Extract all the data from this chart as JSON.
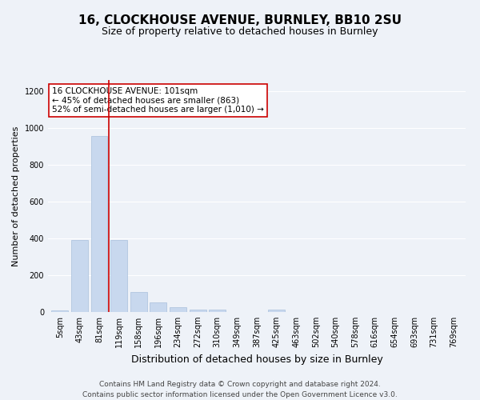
{
  "title1": "16, CLOCKHOUSE AVENUE, BURNLEY, BB10 2SU",
  "title2": "Size of property relative to detached houses in Burnley",
  "xlabel": "Distribution of detached houses by size in Burnley",
  "ylabel": "Number of detached properties",
  "categories": [
    "5sqm",
    "43sqm",
    "81sqm",
    "119sqm",
    "158sqm",
    "196sqm",
    "234sqm",
    "272sqm",
    "310sqm",
    "349sqm",
    "387sqm",
    "425sqm",
    "463sqm",
    "502sqm",
    "540sqm",
    "578sqm",
    "616sqm",
    "654sqm",
    "693sqm",
    "731sqm",
    "769sqm"
  ],
  "values": [
    10,
    393,
    954,
    392,
    107,
    52,
    25,
    13,
    13,
    0,
    0,
    14,
    0,
    0,
    0,
    0,
    0,
    0,
    0,
    0,
    0
  ],
  "bar_color": "#c8d8ee",
  "bar_edge_color": "#a8c0dc",
  "vline_x_index": 2.5,
  "annotation_text": "16 CLOCKHOUSE AVENUE: 101sqm\n← 45% of detached houses are smaller (863)\n52% of semi-detached houses are larger (1,010) →",
  "annotation_box_color": "#ffffff",
  "annotation_box_edge": "#cc0000",
  "vline_color": "#cc0000",
  "footer": "Contains HM Land Registry data © Crown copyright and database right 2024.\nContains public sector information licensed under the Open Government Licence v3.0.",
  "ylim": [
    0,
    1260
  ],
  "background_color": "#eef2f8",
  "grid_color": "#ffffff",
  "title1_fontsize": 11,
  "title2_fontsize": 9,
  "xlabel_fontsize": 9,
  "ylabel_fontsize": 8,
  "footer_fontsize": 6.5,
  "tick_fontsize": 7,
  "annotation_fontsize": 7.5
}
